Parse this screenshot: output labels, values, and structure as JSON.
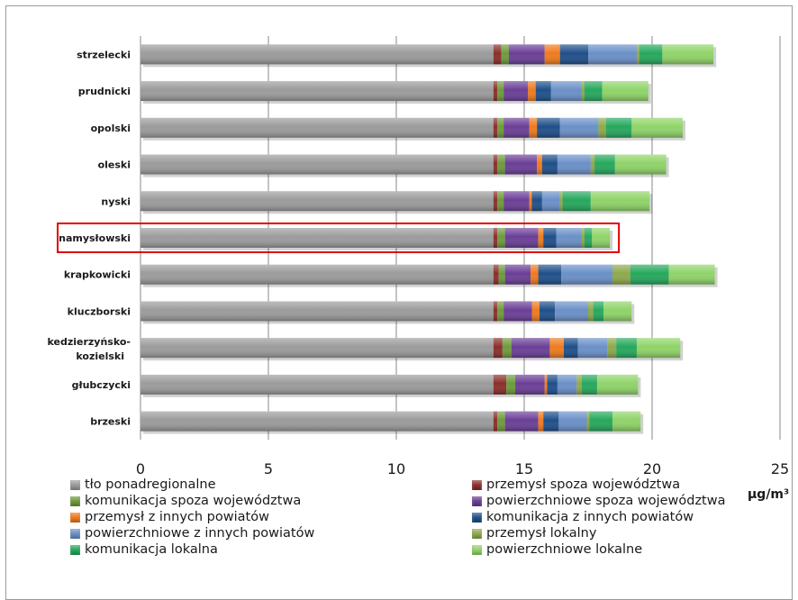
{
  "chart_data": {
    "type": "bar",
    "orientation": "horizontal",
    "stacked": true,
    "xlabel": "μg/m³",
    "xlim": [
      0,
      25
    ],
    "xticks": [
      0,
      5,
      10,
      15,
      20,
      25
    ],
    "grid": true,
    "legend_position": "bottom",
    "highlighted_category": "namysłowski",
    "highlight_color": "#e00000",
    "categories": [
      "strzelecki",
      "prudnicki",
      "opolski",
      "oleski",
      "nyski",
      "namysłowski",
      "krapkowicki",
      "kluczborski",
      "kedzierzyńsko-kozielski",
      "głubczycki",
      "brzeski"
    ],
    "series": [
      {
        "name": "tło ponadregionalne",
        "color": "#9b9b9b",
        "values": [
          13.8,
          13.8,
          13.8,
          13.8,
          13.8,
          13.8,
          13.8,
          13.8,
          13.8,
          13.8,
          13.8
        ]
      },
      {
        "name": "przemysł spoza województwa",
        "color": "#8b2e2a",
        "values": [
          0.3,
          0.15,
          0.15,
          0.15,
          0.15,
          0.15,
          0.2,
          0.15,
          0.35,
          0.5,
          0.15
        ]
      },
      {
        "name": "komunikacja spoza województwa",
        "color": "#6e9a3b",
        "values": [
          0.3,
          0.25,
          0.25,
          0.3,
          0.25,
          0.3,
          0.25,
          0.25,
          0.35,
          0.35,
          0.3
        ]
      },
      {
        "name": "powierzchniowe spoza województwa",
        "color": "#6a3e96",
        "values": [
          1.4,
          0.95,
          1.0,
          1.25,
          1.0,
          1.3,
          1.0,
          1.1,
          1.5,
          1.15,
          1.3
        ]
      },
      {
        "name": "przemysł z innych powiatów",
        "color": "#f07a1c",
        "values": [
          0.6,
          0.3,
          0.3,
          0.2,
          0.1,
          0.2,
          0.3,
          0.3,
          0.55,
          0.1,
          0.2
        ]
      },
      {
        "name": "komunikacja z innych powiatów",
        "color": "#1e4f8a",
        "values": [
          1.1,
          0.6,
          0.9,
          0.6,
          0.4,
          0.5,
          0.9,
          0.6,
          0.55,
          0.4,
          0.6
        ]
      },
      {
        "name": "powierzchniowe z innych powiatów",
        "color": "#6a90c8",
        "values": [
          1.9,
          1.2,
          1.5,
          1.3,
          0.7,
          1.0,
          2.0,
          1.3,
          1.15,
          0.75,
          1.1
        ]
      },
      {
        "name": "przemysł lokalny",
        "color": "#8ea94b",
        "values": [
          0.1,
          0.1,
          0.3,
          0.15,
          0.1,
          0.1,
          0.7,
          0.2,
          0.35,
          0.2,
          0.1
        ]
      },
      {
        "name": "komunikacja lokalna",
        "color": "#25a85c",
        "values": [
          0.9,
          0.7,
          1.0,
          0.8,
          1.1,
          0.3,
          1.5,
          0.4,
          0.8,
          0.6,
          0.9
        ]
      },
      {
        "name": "powierzchniowe lokalne",
        "color": "#8fd468",
        "values": [
          2.0,
          1.8,
          2.0,
          2.0,
          2.3,
          0.7,
          1.8,
          1.1,
          1.7,
          1.6,
          1.1
        ]
      }
    ]
  }
}
